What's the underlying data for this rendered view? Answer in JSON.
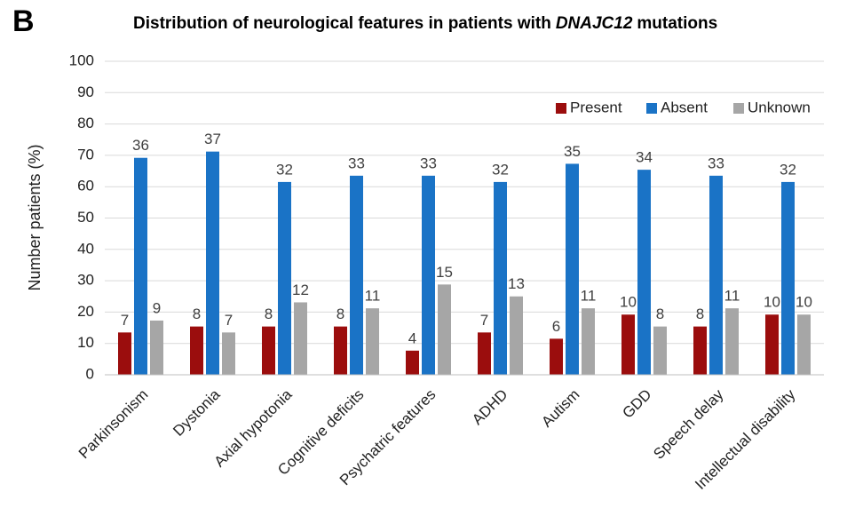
{
  "panel_label": "B",
  "chart_data": {
    "type": "bar",
    "title": [
      "Distribution of neurological features in patients with",
      "DNAJC12",
      "mutations"
    ],
    "y_label": "Number patients (%)",
    "categories": [
      "Parkinsonism",
      "Dystonia",
      "Axial hypotonia",
      "Cognitive deficits",
      "Psychatric features",
      "ADHD",
      "Autism",
      "GDD",
      "Speech delay",
      "Intellectual disability"
    ],
    "series": [
      {
        "name": "Present",
        "color": "#9b0d0d",
        "values": [
          13.5,
          15.4,
          15.4,
          15.4,
          7.7,
          13.5,
          11.5,
          19.2,
          15.4,
          19.2
        ],
        "counts": [
          7,
          8,
          8,
          8,
          4,
          7,
          6,
          10,
          8,
          10
        ]
      },
      {
        "name": "Absent",
        "color": "#1a73c6",
        "values": [
          69.2,
          71.2,
          61.5,
          63.5,
          63.5,
          61.5,
          67.3,
          65.4,
          63.5,
          61.5
        ],
        "counts": [
          36,
          37,
          32,
          33,
          33,
          32,
          35,
          34,
          33,
          32
        ]
      },
      {
        "name": "Unknown",
        "color": "#a6a6a6",
        "values": [
          17.3,
          13.5,
          23.1,
          21.2,
          28.8,
          25.0,
          21.2,
          15.4,
          21.2,
          19.2
        ],
        "counts": [
          9,
          7,
          12,
          11,
          15,
          13,
          11,
          8,
          11,
          10
        ]
      }
    ],
    "ylim": [
      0,
      100
    ],
    "yticks": [
      0,
      10,
      20,
      30,
      40,
      50,
      60,
      70,
      80,
      90,
      100
    ],
    "grid": true,
    "legend": "top-right"
  }
}
